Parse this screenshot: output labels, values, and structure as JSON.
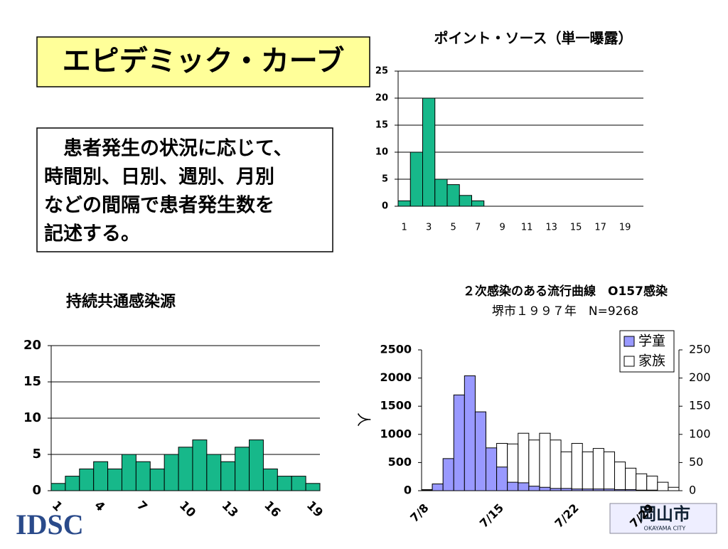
{
  "slide": {
    "title": "エピデミック・カーブ",
    "text_lines": [
      "　患者発生の状況に応じて、",
      "時間別、日別、週別、月別",
      "などの間隔で患者発生数を",
      "記述する。"
    ]
  },
  "logos": {
    "left": "IDSC",
    "right": "岡山市",
    "right_sub": "OKAYAMA CITY"
  },
  "chart_data": [
    {
      "type": "bar",
      "title": "ポイント・ソース（単一曝露）",
      "categories": [
        1,
        null,
        3,
        null,
        5,
        null,
        7,
        null,
        9,
        null,
        11,
        null,
        13,
        null,
        15,
        null,
        17,
        null,
        19,
        null
      ],
      "values": [
        1,
        10,
        20,
        5,
        4,
        2,
        1,
        0,
        0,
        0,
        0,
        0,
        0,
        0,
        0,
        0,
        0,
        0,
        0,
        0
      ],
      "color": "#17b88a",
      "ylim": [
        0,
        25
      ],
      "yticks": [
        0,
        5,
        10,
        15,
        20,
        25
      ],
      "grid": true
    },
    {
      "type": "bar",
      "title": "持続共通感染源",
      "categories": [
        1,
        null,
        null,
        4,
        null,
        null,
        7,
        null,
        null,
        10,
        null,
        null,
        13,
        null,
        null,
        16,
        null,
        null,
        19
      ],
      "values": [
        1,
        2,
        3,
        4,
        3,
        5,
        4,
        3,
        5,
        6,
        7,
        5,
        4,
        6,
        7,
        3,
        2,
        2,
        1
      ],
      "color": "#17b88a",
      "ylim": [
        0,
        20
      ],
      "yticks": [
        0,
        5,
        10,
        15,
        20
      ],
      "grid": true
    },
    {
      "type": "bar",
      "title": "２次感染のある流行曲線　O157感染",
      "subtitle": "堺市１９９７年　N=9268",
      "y_label": "人",
      "categories": [
        "7/8",
        null,
        null,
        null,
        null,
        null,
        null,
        "7/15",
        null,
        null,
        null,
        null,
        null,
        null,
        "7/22",
        null,
        null,
        null,
        null,
        null,
        null,
        "7/29",
        null,
        null
      ],
      "series": [
        {
          "name": "学童",
          "color": "#9999ff",
          "axis": "y",
          "values": [
            10,
            120,
            570,
            1700,
            2040,
            1400,
            760,
            420,
            150,
            140,
            80,
            60,
            40,
            40,
            30,
            30,
            30,
            30,
            20,
            20,
            10,
            10,
            0,
            0
          ]
        },
        {
          "name": "家族",
          "color": "#ffffff",
          "axis": "y2",
          "values": [
            2,
            10,
            13,
            14,
            33,
            36,
            57,
            84,
            83,
            102,
            90,
            102,
            90,
            69,
            84,
            69,
            75,
            69,
            51,
            40,
            30,
            26,
            15,
            6
          ]
        }
      ],
      "ylim": [
        0,
        2500
      ],
      "yticks": [
        0,
        500,
        1000,
        1500,
        2000,
        2500
      ],
      "y2lim": [
        0,
        250
      ],
      "y2ticks": [
        0,
        50,
        100,
        150,
        200,
        250
      ],
      "grid": false,
      "legend": "top-right"
    }
  ]
}
